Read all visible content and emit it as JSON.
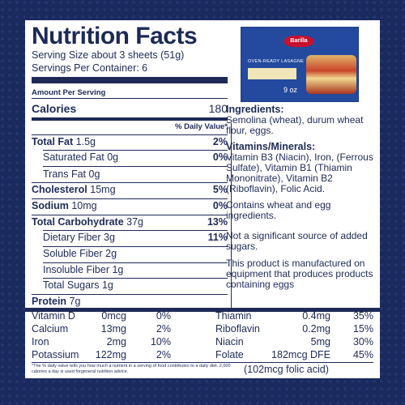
{
  "title": "Nutrition Facts",
  "serving_size": "Serving Size about 3 sheets (51g)",
  "servings_per_container": "Servings Per Container: 6",
  "amount_per_serving": "Amount Per Serving",
  "calories": {
    "label": "Calories",
    "value": "180"
  },
  "daily_value_header": "% Daily Value*",
  "rows": {
    "total_fat": {
      "label": "Total Fat",
      "amount": "1.5g",
      "dv": "2%"
    },
    "sat_fat": {
      "label": "Saturated Fat",
      "amount": "0g",
      "dv": "0%"
    },
    "trans_fat": {
      "label": "Trans Fat",
      "amount": "0g"
    },
    "cholesterol": {
      "label": "Cholesterol",
      "amount": "15mg",
      "dv": "5%"
    },
    "sodium": {
      "label": "Sodium",
      "amount": "10mg",
      "dv": "0%"
    },
    "total_carb": {
      "label": "Total Carbohydrate",
      "amount": "37g",
      "dv": "13%"
    },
    "fiber": {
      "label": "Dietary Fiber",
      "amount": "3g",
      "dv": "11%"
    },
    "soluble": {
      "label": "Soluble Fiber",
      "amount": "2g"
    },
    "insoluble": {
      "label": "Insoluble Fiber",
      "amount": "1g"
    },
    "sugars": {
      "label": "Total Sugars",
      "amount": "1g"
    },
    "protein": {
      "label": "Protein",
      "amount": "7g"
    }
  },
  "package": {
    "brand": "Barilla",
    "product": "OVEN-READY LASAGNE",
    "weight": "9 oz"
  },
  "ingredients": {
    "heading": "Ingredients:",
    "text": "Semolina (wheat), durum wheat flour, eggs."
  },
  "vitamins_minerals": {
    "heading": "Vitamins/Minerals:",
    "text": "Vitamin B3 (Niacin), Iron, (Ferrous Sulfate), Vitamin B1 (Thiamin Mononitrate), Vitamin B2 (Riboflavin), Folic Acid."
  },
  "contains": "Contains wheat and egg ingredients.",
  "sugars_note": "Not a significant source of added sugars.",
  "facility_note": "This product is manufactured on equipment that produces products containing eggs",
  "vitamins_left": [
    {
      "name": "Vitamin D",
      "amount": "0mcg",
      "dv": "0%"
    },
    {
      "name": "Calcium",
      "amount": "13mg",
      "dv": "2%"
    },
    {
      "name": "Iron",
      "amount": "2mg",
      "dv": "10%"
    },
    {
      "name": "Potassium",
      "amount": "122mg",
      "dv": "2%"
    }
  ],
  "vitamins_right": [
    {
      "name": "Thiamin",
      "amount": "0.4mg",
      "dv": "35%"
    },
    {
      "name": "Riboflavin",
      "amount": "0.2mg",
      "dv": "15%"
    },
    {
      "name": "Niacin",
      "amount": "5mg",
      "dv": "30%"
    },
    {
      "name": "Folate",
      "amount": "182mcg DFE",
      "dv": "45%"
    }
  ],
  "folic_acid": "(102mcg folic acid)",
  "footnote": "*The % daily value tells you how much a nutrient in a serving of food contributes to a daily diet. 2,000 calories a day is used forgeneral nutrition advice.",
  "colors": {
    "navy": "#1d2a57",
    "background": "#1b2a5e"
  }
}
